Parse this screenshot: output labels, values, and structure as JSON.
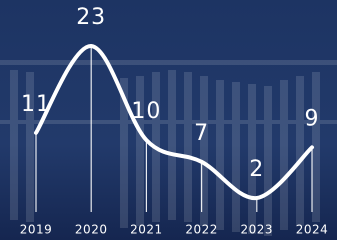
{
  "chart_data": {
    "type": "line",
    "categories": [
      "2019",
      "2020",
      "2021",
      "2022",
      "2023",
      "2024"
    ],
    "values": [
      11,
      23,
      10,
      7,
      2,
      9
    ],
    "color": "#ffffff"
  }
}
